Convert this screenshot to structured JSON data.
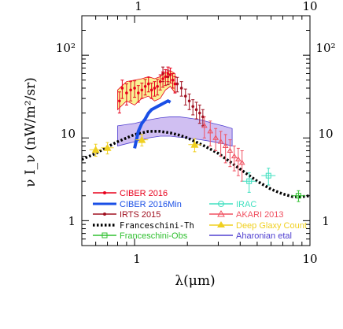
{
  "chart_data": {
    "type": "scatter",
    "x_scale": "log",
    "y_scale": "log",
    "xlim": [
      0.5,
      10
    ],
    "ylim": [
      0.5,
      300
    ],
    "xlabel": "λ(μm)",
    "ylabel": "ν I_ν  (nW/m²/sr)",
    "x_tick_labels": [
      "1",
      "10"
    ],
    "y_tick_labels": [
      "1",
      "10",
      "10²"
    ],
    "series": [
      {
        "name": "CIBER 2016",
        "color": "#e8001c",
        "marker": "dot",
        "x": [
          0.82,
          0.85,
          0.9,
          0.95,
          1.0,
          1.05,
          1.1,
          1.15,
          1.2,
          1.25,
          1.3,
          1.35,
          1.4,
          1.45,
          1.5,
          1.55,
          1.6,
          1.65,
          1.7
        ],
        "y": [
          28,
          40,
          35,
          38,
          40,
          35,
          38,
          42,
          45,
          38,
          40,
          42,
          48,
          52,
          55,
          60,
          58,
          50,
          45
        ],
        "err": [
          8,
          10,
          10,
          10,
          9,
          8,
          8,
          9,
          9,
          8,
          8,
          9,
          10,
          11,
          12,
          12,
          12,
          10,
          10
        ]
      },
      {
        "name": "CIBER 2016Min",
        "color": "#1a4fe6",
        "x": [
          1.0,
          1.05,
          1.1,
          1.15,
          1.2,
          1.25,
          1.3,
          1.35,
          1.4,
          1.45,
          1.5,
          1.55,
          1.6
        ],
        "y": [
          7.5,
          12,
          15,
          17,
          20,
          22,
          23,
          24,
          25,
          26,
          27,
          28,
          27
        ]
      },
      {
        "name": "IRTS 2015",
        "color": "#a01020",
        "x": [
          1.45,
          1.55,
          1.65,
          1.75,
          1.85,
          1.95,
          2.05,
          2.15,
          2.25,
          2.35,
          2.45
        ],
        "y": [
          60,
          55,
          50,
          45,
          40,
          32,
          28,
          24,
          22,
          20,
          18
        ],
        "err": [
          12,
          11,
          10,
          9,
          8,
          7,
          6,
          5,
          5,
          5,
          4
        ]
      },
      {
        "name": "IRAC",
        "color": "#40e0c0",
        "x": [
          4.5,
          5.8
        ],
        "y": [
          3.0,
          3.5
        ],
        "err": [
          0.8,
          0.8
        ]
      },
      {
        "name": "AKARI 2013",
        "color": "#f05060",
        "x": [
          2.5,
          2.7,
          2.9,
          3.1,
          3.3,
          3.5,
          3.7,
          3.9,
          4.1
        ],
        "y": [
          14,
          12,
          10,
          9,
          8,
          7,
          6,
          5.5,
          5
        ],
        "err": [
          4,
          4,
          3,
          3,
          3,
          2.5,
          2,
          2,
          2
        ]
      },
      {
        "name": "Franceschini-Th",
        "color": "#000000",
        "style": "dotted",
        "x": [
          0.5,
          0.6,
          0.7,
          0.8,
          0.9,
          1.0,
          1.2,
          1.4,
          1.6,
          1.8,
          2.0,
          2.5,
          3.0,
          4.0,
          5.0,
          6.0,
          7.0,
          8.0,
          9.0,
          10.0
        ],
        "y": [
          5.5,
          6.5,
          7.8,
          9.0,
          10.0,
          11.0,
          12.0,
          12.0,
          11.5,
          10.8,
          10.0,
          8.0,
          6.5,
          4.2,
          3.0,
          2.4,
          2.1,
          1.95,
          1.95,
          2.0
        ]
      },
      {
        "name": "Franceschini-Obs",
        "color": "#30c030",
        "x": [
          8.6
        ],
        "y": [
          2.0
        ],
        "err": [
          0.3
        ]
      },
      {
        "name": "Deep Glaxy Count",
        "color": "#f0d020",
        "marker": "triangle",
        "x": [
          0.6,
          0.7,
          1.1,
          2.2
        ],
        "y": [
          7.2,
          7.6,
          9.5,
          8.3
        ],
        "err": [
          1.2,
          1.2,
          1.5,
          1.5
        ]
      },
      {
        "name": "Aharonian etal",
        "color": "#5040d0",
        "fill": "#c8b4f0",
        "x": [
          0.8,
          1.0,
          1.2,
          1.4,
          1.6,
          1.8,
          2.0,
          2.4,
          2.8,
          3.2,
          3.6
        ],
        "upper": [
          14,
          15,
          16.5,
          17.5,
          18,
          18,
          17.5,
          16.5,
          15,
          14,
          13
        ],
        "lower": [
          8,
          9,
          10,
          10.5,
          10.5,
          10.2,
          10,
          9.5,
          9,
          8.5,
          8
        ]
      }
    ],
    "bands": [
      {
        "series": "CIBER 2016",
        "fill": "#f8f07a",
        "x": [
          0.8,
          0.9,
          1.0,
          1.1,
          1.2,
          1.3,
          1.4,
          1.5,
          1.6,
          1.7
        ],
        "upper": [
          38,
          48,
          50,
          52,
          55,
          52,
          55,
          62,
          65,
          60
        ],
        "lower": [
          22,
          28,
          25,
          30,
          32,
          28,
          30,
          38,
          42,
          35
        ]
      }
    ],
    "legend_position": "bottom"
  }
}
